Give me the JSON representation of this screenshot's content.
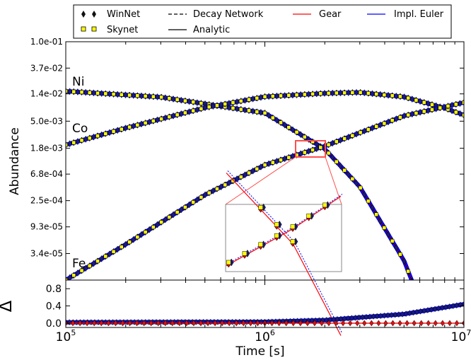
{
  "chart_data": [
    {
      "type": "line",
      "ylabel": "Abundance",
      "yscale": "log",
      "xscale": "log",
      "xlim": [
        100000,
        10000000
      ],
      "ylim": [
        1.25e-05,
        0.1
      ],
      "yticks": [
        0.1,
        0.037,
        0.014,
        0.005,
        0.0018,
        0.00068,
        0.00025,
        9.3e-05,
        3.4e-05
      ],
      "ytick_labels": [
        "1.0e-01",
        "3.7e-02",
        "1.4e-02",
        "5.0e-03",
        "1.8e-03",
        "6.8e-04",
        "2.5e-04",
        "9.3e-05",
        "3.4e-05"
      ],
      "legend": {
        "location": "top",
        "entries": [
          "WinNet",
          "Skynet",
          "Decay Network",
          "Analytic",
          "Gear",
          "Impl. Euler"
        ]
      },
      "colors": {
        "gear": "#ff0000",
        "impl_euler": "#0000ff",
        "analytic": "#000000",
        "decay_network": "#000000",
        "winnet_marker": "#1a1a80",
        "skynet_marker": "#ffff00",
        "inset_box": "#ff3333"
      },
      "annotations": [
        "Ni",
        "Co",
        "Fe"
      ],
      "series": [
        {
          "name": "Ni",
          "x": [
            100000,
            300000,
            1000000,
            2000000,
            3000000,
            5000000,
            7000000
          ],
          "y": [
            0.0155,
            0.0124,
            0.0068,
            0.00175,
            0.00042,
            2.6e-05,
            1.6e-06
          ]
        },
        {
          "name": "Co",
          "x": [
            100000,
            200000,
            500000,
            1000000,
            2000000,
            3000000,
            5000000,
            8000000,
            10000000
          ],
          "y": [
            0.00205,
            0.00386,
            0.0083,
            0.0126,
            0.0143,
            0.0148,
            0.0125,
            0.0082,
            0.0063
          ]
        },
        {
          "name": "Fe",
          "x": [
            100000,
            200000,
            500000,
            1000000,
            2000000,
            5000000,
            10000000
          ],
          "y": [
            1.25e-05,
            4.8e-05,
            0.00031,
            0.00096,
            0.00195,
            0.0061,
            0.0101
          ]
        }
      ]
    },
    {
      "type": "line",
      "xlabel": "Time [s]",
      "ylabel": "Δ",
      "xscale": "log",
      "xlim": [
        100000,
        10000000
      ],
      "ylim": [
        -0.1,
        1.0
      ],
      "yticks": [
        0.0,
        0.4,
        0.8
      ],
      "ytick_labels": [
        "0.0",
        "0.4",
        "0.8"
      ],
      "xtick_labels": [
        {
          "base": "10",
          "exp": "5"
        },
        {
          "base": "10",
          "exp": "6"
        },
        {
          "base": "10",
          "exp": "7"
        }
      ],
      "series": [
        {
          "name": "Impl. Euler",
          "x": [
            100000,
            1000000,
            2000000,
            5000000,
            10000000
          ],
          "y": [
            0.02,
            0.03,
            0.07,
            0.21,
            0.44
          ]
        },
        {
          "name": "Gear",
          "x": [
            100000,
            10000000
          ],
          "y": [
            0.0,
            0.0
          ]
        }
      ]
    }
  ]
}
